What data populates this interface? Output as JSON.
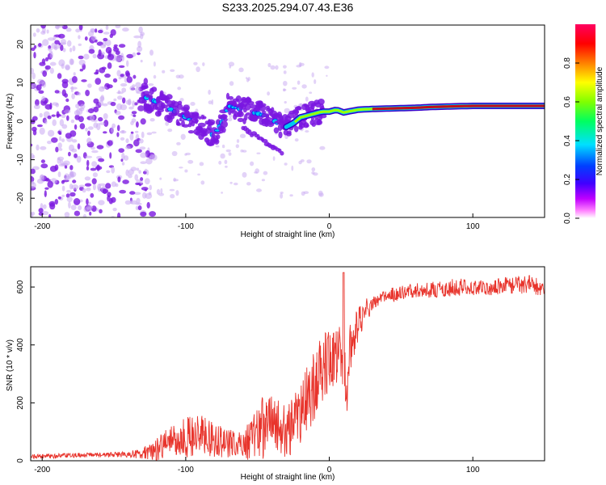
{
  "title": "S233.2025.294.07.43.E36",
  "colors": {
    "background": "#ffffff",
    "snr_line": "#e8342c",
    "ridge": "#c0101c",
    "blob_main": "#7a16e0",
    "blob_light": "#c8a8f2",
    "halo": "#00c8f0"
  },
  "chart_data": [
    {
      "type": "heatmap",
      "name": "spectrogram",
      "xlabel": "Height of straight line (km)",
      "ylabel": "Frequency (Hz)",
      "xlim": [
        -208,
        150
      ],
      "ylim": [
        -25,
        25
      ],
      "xticks": [
        -200,
        -100,
        0,
        100
      ],
      "xtick_labels": [
        "-200",
        "-100",
        "0",
        "100"
      ],
      "yticks": [
        -20,
        -10,
        0,
        10,
        20
      ],
      "ytick_labels": [
        "-20",
        "-10",
        "0",
        "10",
        "20"
      ],
      "colorbar": {
        "label": "Normalized spectral amplitude",
        "range": [
          0,
          1
        ],
        "ticks": [
          0.0,
          0.2,
          0.4,
          0.6,
          0.8
        ],
        "tick_labels": [
          "0.0",
          "0.2",
          "0.4",
          "0.6",
          "0.8"
        ],
        "colormap": [
          "#ffffff",
          "#ff00ff",
          "#8000ff",
          "#0000ff",
          "#00ffff",
          "#00ff00",
          "#ffff00",
          "#ff8000",
          "#ff0000",
          "#ff0060"
        ]
      },
      "dominant_frequency_ridge": {
        "x": [
          -130,
          -120,
          -110,
          -100,
          -90,
          -80,
          -70,
          -60,
          -50,
          -40,
          -33,
          -30,
          -25,
          -20,
          -15,
          -10,
          -5,
          0,
          5,
          10,
          20,
          30,
          40,
          50,
          60,
          70,
          80,
          90,
          100,
          110,
          120,
          130,
          140,
          150
        ],
        "y": [
          6.5,
          5,
          3,
          1,
          -1,
          -4,
          4,
          3,
          2,
          1,
          -2,
          -1.5,
          -0.5,
          1,
          1.5,
          2,
          2.5,
          2.5,
          3,
          2.3,
          3,
          3.2,
          3.3,
          3.4,
          3.5,
          3.7,
          3.8,
          3.9,
          4,
          4,
          4,
          4,
          4,
          4
        ]
      },
      "strong_amplitude_from_km": 0
    },
    {
      "type": "line",
      "name": "snr",
      "xlabel": "Height of straight line (km)",
      "ylabel": "SNR (10 * v/v)",
      "xlim": [
        -208,
        150
      ],
      "ylim": [
        0,
        670
      ],
      "xticks": [
        -200,
        -100,
        0,
        100
      ],
      "xtick_labels": [
        "-200",
        "-100",
        "0",
        "100"
      ],
      "yticks": [
        0,
        200,
        400,
        600
      ],
      "ytick_labels": [
        "0",
        "200",
        "400",
        "600"
      ],
      "series": [
        {
          "name": "SNR",
          "x": [
            -208,
            -200,
            -180,
            -160,
            -140,
            -130,
            -120,
            -110,
            -100,
            -90,
            -80,
            -70,
            -60,
            -50,
            -40,
            -30,
            -25,
            -20,
            -15,
            -10,
            -5,
            0,
            5,
            10,
            12,
            15,
            20,
            25,
            30,
            40,
            50,
            60,
            70,
            80,
            90,
            100,
            110,
            120,
            130,
            140,
            145,
            150
          ],
          "values": [
            15,
            15,
            18,
            20,
            22,
            25,
            40,
            70,
            80,
            90,
            70,
            60,
            50,
            100,
            140,
            100,
            120,
            170,
            220,
            260,
            320,
            350,
            380,
            380,
            200,
            410,
            470,
            520,
            540,
            570,
            580,
            590,
            590,
            595,
            600,
            600,
            600,
            605,
            605,
            610,
            600,
            585
          ],
          "noise_amplitude": [
            8,
            8,
            8,
            8,
            10,
            20,
            40,
            60,
            70,
            70,
            60,
            50,
            45,
            110,
            110,
            90,
            100,
            110,
            120,
            120,
            120,
            110,
            110,
            130,
            70,
            90,
            60,
            40,
            30,
            25,
            25,
            25,
            28,
            30,
            30,
            30,
            30,
            30,
            30,
            30,
            30,
            30
          ]
        }
      ]
    }
  ]
}
